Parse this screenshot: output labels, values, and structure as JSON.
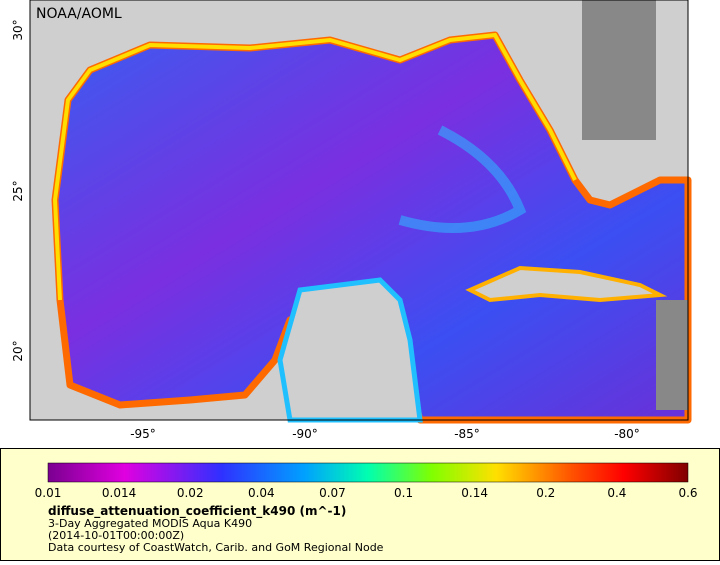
{
  "map": {
    "label": "NOAA/AOML",
    "lat_ticks": [
      "20°",
      "25°",
      "30°"
    ],
    "lon_ticks": [
      "-95°",
      "-90°",
      "-85°",
      "-80°"
    ]
  },
  "legend": {
    "ticks": [
      "0.01",
      "0.014",
      "0.02",
      "0.04",
      "0.07",
      "0.1",
      "0.14",
      "0.2",
      "0.4",
      "0.6"
    ],
    "variable": "diffuse_attenuation_coefficient_k490 (m^-1)",
    "lines": [
      "3-Day Aggregated MODIS Aqua K490",
      "(2014-10-01T00:00:00Z)",
      "Data courtesy of CoastWatch, Carib. and GoM Regional Node"
    ]
  }
}
